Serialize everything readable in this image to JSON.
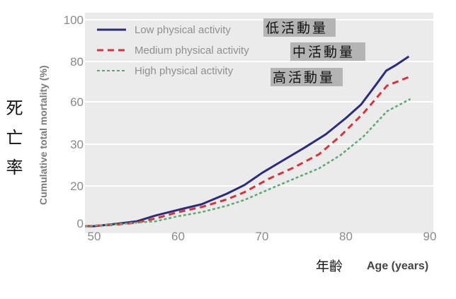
{
  "chart_data": {
    "type": "line",
    "title": "",
    "xlabel": "Age (years)",
    "xlabel_cn": "年齡",
    "ylabel": "Cumulative total mortality (%)",
    "ylabel_cn": "死亡率",
    "xlim": [
      49,
      90
    ],
    "x_ticks": [
      50,
      60,
      70,
      80,
      90
    ],
    "y_ticks": [
      0,
      20,
      30,
      60,
      80,
      100
    ],
    "grid": true,
    "legend_position": "top-left",
    "series": [
      {
        "name": "Low physical activity",
        "name_cn": "低活動量",
        "color": "#2d2b7c",
        "style": "solid",
        "x": [
          48.9,
          50,
          52.3,
          55.1,
          57.3,
          60,
          62.8,
          65.8,
          67.9,
          70,
          72.5,
          75.1,
          77.6,
          80,
          81.8,
          83.5,
          84.8,
          86,
          87.5
        ],
        "y": [
          -1.5,
          -1.5,
          -0.4,
          1.1,
          4.2,
          7.2,
          10.2,
          15.8,
          20.2,
          23.1,
          26.1,
          29.2,
          37,
          48.5,
          58,
          68,
          75.4,
          78.3,
          82.4
        ]
      },
      {
        "name": "Medium physical activity",
        "name_cn": "中活動量",
        "color": "#d6333b",
        "style": "dashed",
        "x": [
          48.9,
          52.3,
          55.1,
          57.3,
          60,
          62.8,
          65.8,
          67.9,
          70.8,
          73.8,
          76.8,
          79.3,
          82.1,
          84.9,
          87.7
        ],
        "y": [
          -1.5,
          -0.8,
          0.4,
          2.6,
          6,
          8.7,
          12.8,
          16.6,
          21.7,
          24.4,
          27.6,
          35.5,
          52,
          68,
          72.6
        ]
      },
      {
        "name": "High physical activity",
        "name_cn": "高活動量",
        "color": "#5da874",
        "style": "dotted",
        "x": [
          48.9,
          52.3,
          55.1,
          57.3,
          60,
          62.8,
          65.8,
          67.9,
          70.8,
          73.8,
          76.8,
          79.3,
          82.1,
          84.9,
          87.7
        ],
        "y": [
          -1.5,
          -0.6,
          0.4,
          1.1,
          3.8,
          6,
          9.4,
          12.5,
          18.1,
          21.7,
          24.2,
          27.3,
          35.5,
          53.3,
          61.4
        ]
      }
    ]
  }
}
